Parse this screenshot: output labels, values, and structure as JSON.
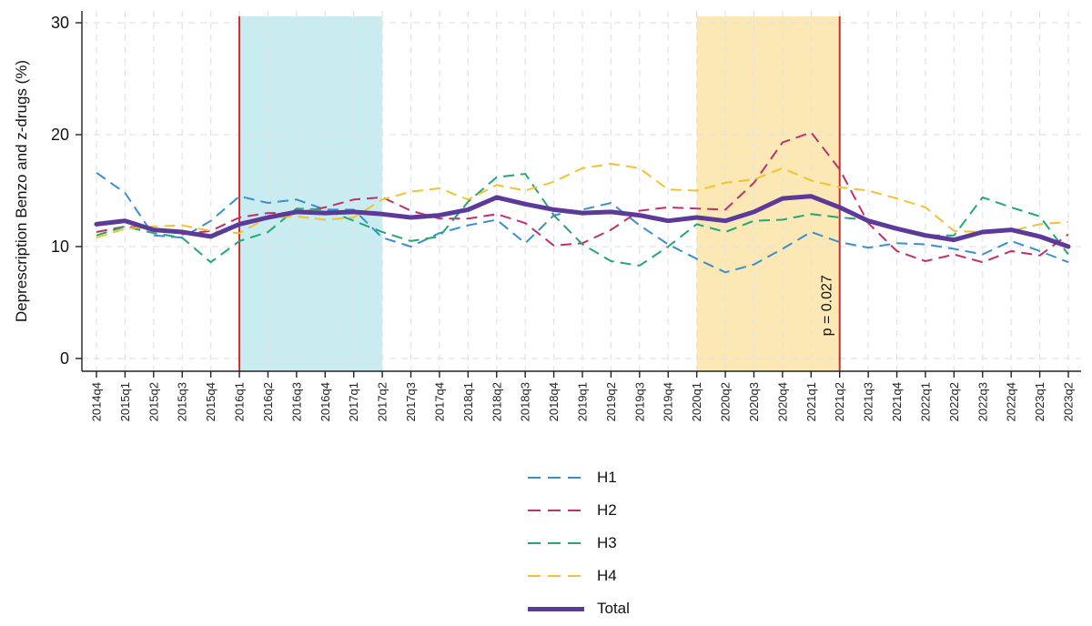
{
  "chart_data": {
    "type": "line",
    "ylabel": "Deprescription Benzo and z-drugs (%)",
    "ylim": [
      0,
      31
    ],
    "yticks": [
      0,
      10,
      20,
      30
    ],
    "categories": [
      "2014q4",
      "2015q1",
      "2015q2",
      "2015q3",
      "2015q4",
      "2016q1",
      "2016q2",
      "2016q3",
      "2016q4",
      "2017q1",
      "2017q2",
      "2017q3",
      "2017q4",
      "2018q1",
      "2018q2",
      "2018q3",
      "2018q4",
      "2019q1",
      "2019q2",
      "2019q3",
      "2019q4",
      "2020q1",
      "2020q2",
      "2020q3",
      "2020q4",
      "2021q1",
      "2021q2",
      "2021q3",
      "2021q4",
      "2022q1",
      "2022q2",
      "2022q3",
      "2022q4",
      "2023q1",
      "2023q2"
    ],
    "shaded_periods": [
      {
        "start": "2016q1",
        "end": "2017q2",
        "color": "#c9ecf0"
      },
      {
        "start": "2020q1",
        "end": "2021q2",
        "color": "#fce8b4"
      }
    ],
    "vertical_lines": [
      {
        "at": "2016q1",
        "color": "#d42a2a"
      },
      {
        "at": "2021q2",
        "color": "#d42a2a"
      }
    ],
    "annotations": [
      {
        "text": "p = 0.027",
        "at": "2021q2",
        "y": 2
      }
    ],
    "series": [
      {
        "name": "H1",
        "color": "#3a8fd0",
        "style": "dashed",
        "values": [
          16.6,
          14.8,
          11.0,
          10.8,
          12.3,
          14.5,
          13.9,
          14.2,
          13.3,
          13.3,
          10.8,
          10.0,
          11.2,
          11.9,
          12.4,
          10.3,
          12.8,
          13.3,
          13.9,
          11.9,
          10.2,
          8.9,
          7.7,
          8.4,
          9.8,
          11.3,
          10.4,
          9.9,
          10.3,
          10.2,
          9.8,
          9.3,
          10.5,
          9.6,
          8.6
        ]
      },
      {
        "name": "H2",
        "color": "#c2306b",
        "style": "dashed",
        "values": [
          11.3,
          11.8,
          11.6,
          11.1,
          11.4,
          12.6,
          13.0,
          13.0,
          13.5,
          14.2,
          14.4,
          13.2,
          12.5,
          12.5,
          12.9,
          12.1,
          10.1,
          10.3,
          11.5,
          13.2,
          13.5,
          13.4,
          13.3,
          15.7,
          19.3,
          20.2,
          16.9,
          12.1,
          9.6,
          8.7,
          9.3,
          8.6,
          9.6,
          9.2,
          11.1
        ]
      },
      {
        "name": "H3",
        "color": "#25a577",
        "style": "dashed",
        "values": [
          11.0,
          11.8,
          11.2,
          10.8,
          8.6,
          10.5,
          11.3,
          13.4,
          13.3,
          12.3,
          11.3,
          10.5,
          10.9,
          14.0,
          16.2,
          16.5,
          12.8,
          10.2,
          8.7,
          8.3,
          10.0,
          12.0,
          11.3,
          12.3,
          12.4,
          12.9,
          12.6,
          12.4,
          11.7,
          11.0,
          11.0,
          14.4,
          13.5,
          12.7,
          9.3
        ]
      },
      {
        "name": "H4",
        "color": "#f2c230",
        "style": "dashed",
        "values": [
          10.8,
          11.6,
          11.8,
          11.9,
          11.4,
          11.2,
          12.6,
          12.7,
          12.4,
          12.6,
          14.2,
          14.9,
          15.2,
          14.2,
          15.5,
          15.0,
          15.8,
          17.0,
          17.4,
          17.0,
          15.1,
          15.0,
          15.7,
          16.0,
          17.0,
          15.9,
          15.3,
          15.0,
          14.3,
          13.5,
          11.4,
          11.3,
          11.4,
          12.0,
          12.2
        ]
      },
      {
        "name": "Total",
        "color": "#5b3a9a",
        "style": "solid",
        "values": [
          12.0,
          12.3,
          11.5,
          11.3,
          10.9,
          12.0,
          12.6,
          13.1,
          13.0,
          13.1,
          12.9,
          12.6,
          12.8,
          13.3,
          14.4,
          13.8,
          13.3,
          13.0,
          13.1,
          12.8,
          12.3,
          12.6,
          12.3,
          13.1,
          14.3,
          14.5,
          13.5,
          12.3,
          11.6,
          11.0,
          10.6,
          11.3,
          11.5,
          10.9,
          10.0
        ]
      }
    ],
    "legend": [
      "H1",
      "H2",
      "H3",
      "H4",
      "Total"
    ]
  }
}
